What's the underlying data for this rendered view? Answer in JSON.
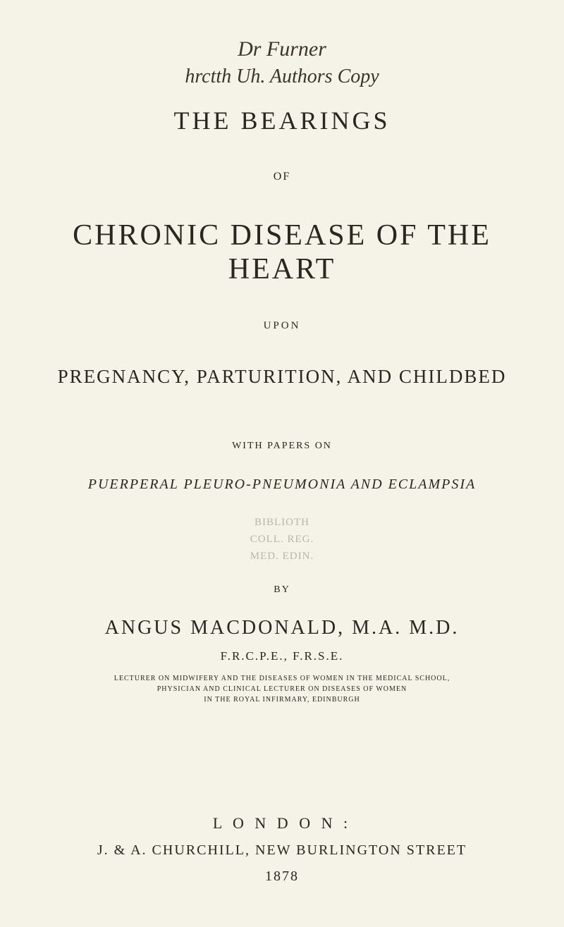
{
  "handwriting": {
    "line1": "Dr  Furner",
    "line2": "hrctth  Uh.  Authors Copy"
  },
  "title_page": {
    "main_title": "THE BEARINGS",
    "of": "OF",
    "big_title": "CHRONIC DISEASE OF THE HEART",
    "upon": "UPON",
    "subtitle": "PREGNANCY, PARTURITION, AND CHILDBED",
    "with_papers": "WITH PAPERS ON",
    "puerperal": "PUERPERAL PLEURO-PNEUMONIA AND ECLAMPSIA"
  },
  "stamp": {
    "line1": "BIBLIOTH",
    "line2": "COLL. REG.",
    "line3": "MED. EDIN."
  },
  "author": {
    "by": "BY",
    "name": "ANGUS MACDONALD, M.A. M.D.",
    "credentials": "F.R.C.P.E., F.R.S.E.",
    "role1": "LECTURER ON MIDWIFERY AND THE DISEASES OF WOMEN IN THE MEDICAL SCHOOL,",
    "role2": "PHYSICIAN AND CLINICAL LECTURER ON DISEASES OF WOMEN",
    "role3": "IN THE ROYAL INFIRMARY, EDINBURGH"
  },
  "imprint": {
    "london": "L O N D O N :",
    "publisher": "J. & A. CHURCHILL, NEW BURLINGTON STREET",
    "year": "1878"
  },
  "styles": {
    "background_color": "#f5f2e8",
    "text_color": "#2a2620",
    "stamp_color": "#b8b5a8",
    "handwriting_color": "#3a3528"
  }
}
